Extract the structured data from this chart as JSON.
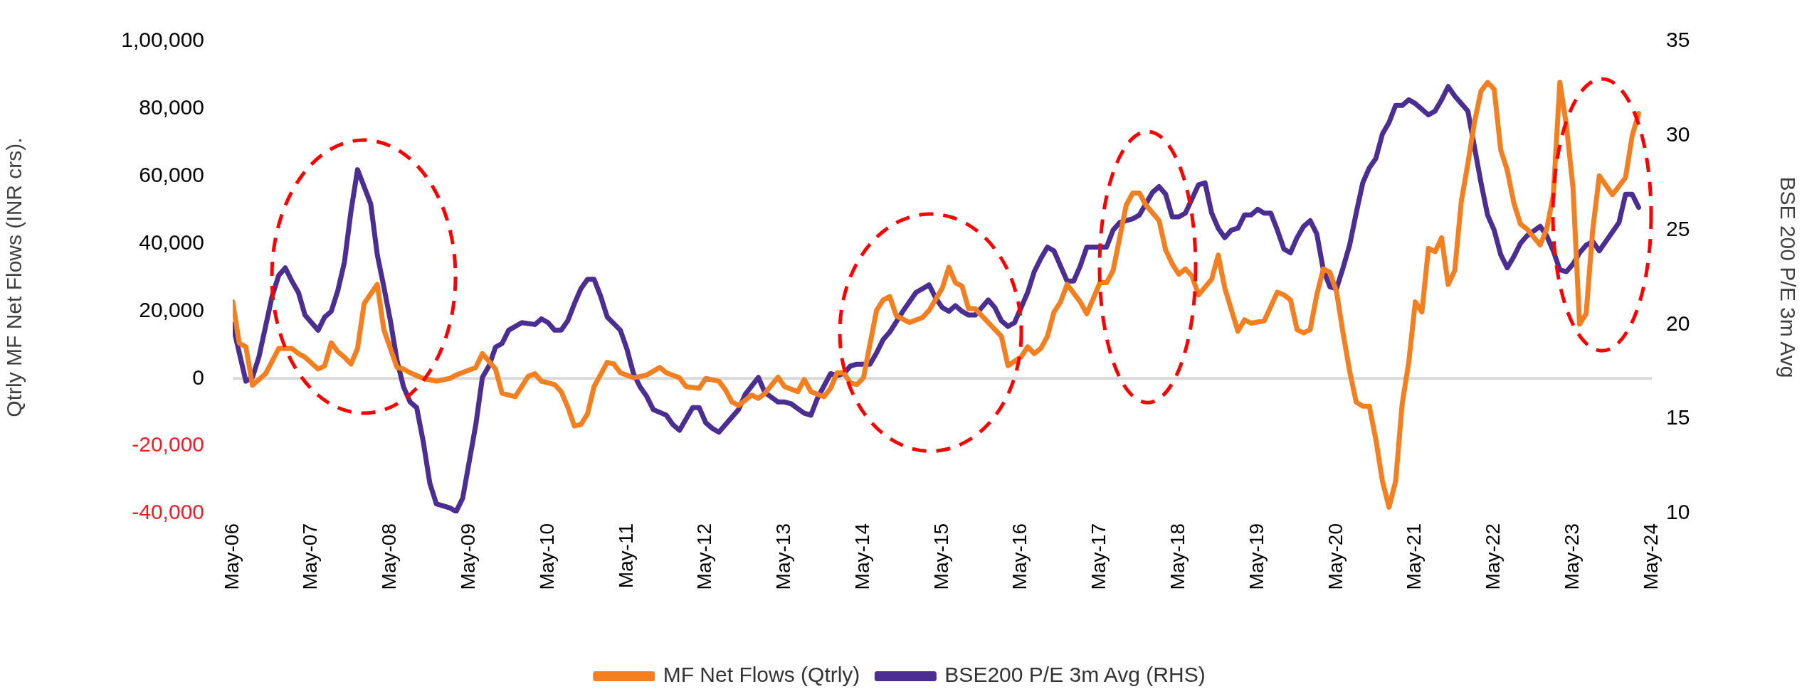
{
  "chart_data": {
    "type": "line",
    "ylabel": "Qtrly MF Net Flows (INR crs).",
    "y2label": "BSE 200 P/E 3m Avg",
    "xlim": [
      "2006-05",
      "2024-05"
    ],
    "xticks": [
      {
        "value": "2006-05",
        "label": "May-06"
      },
      {
        "value": "2007-05",
        "label": "May-07"
      },
      {
        "value": "2008-05",
        "label": "May-08"
      },
      {
        "value": "2009-05",
        "label": "May-09"
      },
      {
        "value": "2010-05",
        "label": "May-10"
      },
      {
        "value": "2011-05",
        "label": "May-11"
      },
      {
        "value": "2012-05",
        "label": "May-12"
      },
      {
        "value": "2013-05",
        "label": "May-13"
      },
      {
        "value": "2014-05",
        "label": "May-14"
      },
      {
        "value": "2015-05",
        "label": "May-15"
      },
      {
        "value": "2016-05",
        "label": "May-16"
      },
      {
        "value": "2017-05",
        "label": "May-17"
      },
      {
        "value": "2018-05",
        "label": "May-18"
      },
      {
        "value": "2019-05",
        "label": "May-19"
      },
      {
        "value": "2020-05",
        "label": "May-20"
      },
      {
        "value": "2021-05",
        "label": "May-21"
      },
      {
        "value": "2022-05",
        "label": "May-22"
      },
      {
        "value": "2023-05",
        "label": "May-23"
      },
      {
        "value": "2024-05",
        "label": "May-24"
      }
    ],
    "ylim": [
      -40000,
      100000
    ],
    "yticks": [
      {
        "value": -40000,
        "label": "-40,000"
      },
      {
        "value": -20000,
        "label": "-20,000"
      },
      0,
      {
        "value": 20000,
        "label": "20,000"
      },
      {
        "value": 40000,
        "label": "40,000"
      },
      {
        "value": 60000,
        "label": "60,000"
      },
      {
        "value": 80000,
        "label": "80,000"
      },
      {
        "value": 100000,
        "label": "1,00,000"
      }
    ],
    "y2lim": [
      10,
      35
    ],
    "y2ticks": [
      10,
      15,
      20,
      25,
      30,
      35
    ],
    "grid": false,
    "legend": "bottom",
    "marker": "none",
    "line_style": "solid",
    "ref_lines": [
      {
        "axis": "y",
        "value": 0,
        "color": "#d9d9d9"
      }
    ],
    "series": [
      {
        "name": "MF Net Flows (Qtrly)",
        "color": "#f47f20",
        "x": [
          "2006-05",
          "2006-06",
          "2006-07",
          "2006-08",
          "2006-10",
          "2006-12",
          "2007-02",
          "2007-03",
          "2007-04",
          "2007-06",
          "2007-07",
          "2007-08",
          "2007-09",
          "2007-10",
          "2007-11",
          "2007-12",
          "2008-01",
          "2008-03",
          "2008-04",
          "2008-06",
          "2008-07",
          "2008-08",
          "2008-10",
          "2008-12",
          "2009-02",
          "2009-03",
          "2009-06",
          "2009-07",
          "2009-09",
          "2009-10",
          "2009-12",
          "2010-02",
          "2010-03",
          "2010-04",
          "2010-06",
          "2010-07",
          "2010-08",
          "2010-09",
          "2010-10",
          "2010-11",
          "2010-12",
          "2011-02",
          "2011-03",
          "2011-04",
          "2011-06",
          "2011-08",
          "2011-10",
          "2011-11",
          "2012-01",
          "2012-02",
          "2012-04",
          "2012-05",
          "2012-07",
          "2012-08",
          "2012-09",
          "2012-10",
          "2012-12",
          "2013-01",
          "2013-02",
          "2013-04",
          "2013-05",
          "2013-07",
          "2013-08",
          "2013-09",
          "2013-11",
          "2013-12",
          "2014-01",
          "2014-02",
          "2014-03",
          "2014-04",
          "2014-05",
          "2014-07",
          "2014-08",
          "2014-09",
          "2014-10",
          "2014-12",
          "2015-02",
          "2015-03",
          "2015-05",
          "2015-06",
          "2015-07",
          "2015-08",
          "2015-09",
          "2015-10",
          "2015-12",
          "2016-02",
          "2016-03",
          "2016-05",
          "2016-06",
          "2016-07",
          "2016-08",
          "2016-09",
          "2016-10",
          "2016-11",
          "2016-12",
          "2017-02",
          "2017-03",
          "2017-05",
          "2017-06",
          "2017-07",
          "2017-09",
          "2017-10",
          "2017-11",
          "2017-12",
          "2018-02",
          "2018-03",
          "2018-04",
          "2018-05",
          "2018-06",
          "2018-07",
          "2018-08",
          "2018-10",
          "2018-11",
          "2018-12",
          "2019-02",
          "2019-03",
          "2019-04",
          "2019-06",
          "2019-08",
          "2019-09",
          "2019-10",
          "2019-11",
          "2019-12",
          "2020-01",
          "2020-02",
          "2020-03",
          "2020-04",
          "2020-05",
          "2020-06",
          "2020-07",
          "2020-08",
          "2020-09",
          "2020-10",
          "2020-11",
          "2020-12",
          "2021-01",
          "2021-02",
          "2021-03",
          "2021-04",
          "2021-05",
          "2021-06",
          "2021-07",
          "2021-08",
          "2021-09",
          "2021-10",
          "2021-11",
          "2021-12",
          "2022-01",
          "2022-02",
          "2022-03",
          "2022-04",
          "2022-05",
          "2022-06",
          "2022-07",
          "2022-08",
          "2022-09",
          "2022-10",
          "2022-12",
          "2023-01",
          "2023-02",
          "2023-03",
          "2023-04",
          "2023-05",
          "2023-06",
          "2023-07",
          "2023-08",
          "2023-09",
          "2023-11",
          "2024-01",
          "2024-02",
          "2024-03"
        ],
        "values": [
          22700,
          10500,
          9400,
          -2000,
          1400,
          8900,
          8900,
          7400,
          6300,
          2800,
          3800,
          10600,
          7900,
          6300,
          4300,
          8900,
          22200,
          27900,
          14500,
          3300,
          2800,
          1700,
          0,
          -800,
          0,
          1000,
          3300,
          7400,
          2800,
          -4400,
          -5400,
          700,
          1400,
          -800,
          -1800,
          -3900,
          -8500,
          -14100,
          -13600,
          -10500,
          -2400,
          4800,
          4300,
          1700,
          200,
          1000,
          3300,
          1700,
          200,
          -2400,
          -2900,
          0,
          -800,
          -3400,
          -7000,
          -8000,
          -4900,
          -5900,
          -4400,
          400,
          -2400,
          -3900,
          -300,
          -3900,
          -5400,
          -2900,
          1700,
          1700,
          -1300,
          -1800,
          200,
          20200,
          23300,
          24300,
          18600,
          16600,
          18100,
          20200,
          26800,
          33000,
          28400,
          27400,
          20700,
          20700,
          16600,
          12500,
          3800,
          6400,
          9400,
          7400,
          8900,
          12500,
          19700,
          22700,
          27900,
          22700,
          19200,
          28400,
          28400,
          32000,
          51400,
          55000,
          55000,
          51400,
          46800,
          38100,
          34000,
          30900,
          32500,
          30400,
          24800,
          29400,
          36600,
          26800,
          14000,
          17400,
          16400,
          17100,
          25600,
          24800,
          23300,
          14500,
          13500,
          14500,
          24800,
          32500,
          31500,
          25800,
          13500,
          2200,
          -7000,
          -8200,
          -8200,
          -18200,
          -30500,
          -38200,
          -30500,
          -7500,
          4800,
          22700,
          19700,
          38600,
          37600,
          41700,
          27900,
          32000,
          52500,
          63700,
          76000,
          85200,
          87800,
          85800,
          67800,
          61700,
          52000,
          45800,
          44300,
          39600,
          44300,
          54300,
          87800,
          75000,
          56600,
          16100,
          19200,
          44000,
          60100,
          54500,
          59600,
          71900,
          78600
        ]
      },
      {
        "name": "BSE200 P/E 3m Avg (RHS)",
        "color": "#4b2e91",
        "axis": "y2",
        "x": [
          "2006-05",
          "2006-07",
          "2006-08",
          "2006-09",
          "2006-11",
          "2006-12",
          "2007-01",
          "2007-02",
          "2007-03",
          "2007-04",
          "2007-06",
          "2007-07",
          "2007-08",
          "2007-09",
          "2007-10",
          "2007-11",
          "2007-12",
          "2008-02",
          "2008-03",
          "2008-04",
          "2008-05",
          "2008-06",
          "2008-07",
          "2008-08",
          "2008-09",
          "2008-10",
          "2008-11",
          "2008-12",
          "2009-02",
          "2009-03",
          "2009-04",
          "2009-06",
          "2009-07",
          "2009-08",
          "2009-09",
          "2009-10",
          "2009-11",
          "2010-01",
          "2010-03",
          "2010-04",
          "2010-05",
          "2010-06",
          "2010-07",
          "2010-08",
          "2010-09",
          "2010-10",
          "2010-11",
          "2010-12",
          "2011-01",
          "2011-02",
          "2011-04",
          "2011-05",
          "2011-06",
          "2011-07",
          "2011-08",
          "2011-09",
          "2011-11",
          "2011-12",
          "2012-01",
          "2012-02",
          "2012-03",
          "2012-04",
          "2012-05",
          "2012-06",
          "2012-07",
          "2012-08",
          "2012-10",
          "2012-11",
          "2013-01",
          "2013-02",
          "2013-04",
          "2013-05",
          "2013-06",
          "2013-08",
          "2013-09",
          "2013-10",
          "2013-12",
          "2014-01",
          "2014-02",
          "2014-03",
          "2014-04",
          "2014-06",
          "2014-07",
          "2014-08",
          "2014-09",
          "2014-11",
          "2014-12",
          "2015-01",
          "2015-02",
          "2015-03",
          "2015-04",
          "2015-05",
          "2015-06",
          "2015-07",
          "2015-08",
          "2015-09",
          "2015-10",
          "2015-11",
          "2015-12",
          "2016-01",
          "2016-02",
          "2016-03",
          "2016-04",
          "2016-05",
          "2016-06",
          "2016-07",
          "2016-08",
          "2016-09",
          "2016-10",
          "2016-11",
          "2016-12",
          "2017-01",
          "2017-02",
          "2017-03",
          "2017-05",
          "2017-06",
          "2017-07",
          "2017-08",
          "2017-10",
          "2017-11",
          "2018-01",
          "2018-02",
          "2018-03",
          "2018-04",
          "2018-05",
          "2018-06",
          "2018-08",
          "2018-09",
          "2018-10",
          "2018-11",
          "2018-12",
          "2019-01",
          "2019-02",
          "2019-03",
          "2019-04",
          "2019-05",
          "2019-06",
          "2019-07",
          "2019-08",
          "2019-09",
          "2019-10",
          "2019-11",
          "2019-12",
          "2020-01",
          "2020-02",
          "2020-03",
          "2020-04",
          "2020-05",
          "2020-06",
          "2020-07",
          "2020-08",
          "2020-09",
          "2020-10",
          "2020-11",
          "2020-12",
          "2021-01",
          "2021-02",
          "2021-03",
          "2021-04",
          "2021-05",
          "2021-06",
          "2021-07",
          "2021-08",
          "2021-09",
          "2021-10",
          "2021-11",
          "2021-12",
          "2022-01",
          "2022-02",
          "2022-03",
          "2022-04",
          "2022-05",
          "2022-06",
          "2022-07",
          "2022-08",
          "2022-09",
          "2022-10",
          "2022-12",
          "2023-01",
          "2023-02",
          "2023-03",
          "2023-04",
          "2023-05",
          "2023-06",
          "2023-07",
          "2023-08",
          "2023-09",
          "2023-10",
          "2023-12",
          "2024-01",
          "2024-02",
          "2024-03"
        ],
        "values": [
          20.0,
          17.0,
          17.2,
          18.3,
          21.5,
          22.6,
          23.0,
          22.3,
          21.7,
          20.5,
          19.7,
          20.4,
          20.7,
          21.8,
          23.3,
          26.0,
          28.2,
          26.4,
          23.7,
          22.0,
          20.2,
          18.1,
          16.7,
          15.9,
          15.6,
          13.8,
          11.6,
          10.5,
          10.3,
          10.1,
          10.8,
          14.7,
          17.2,
          17.8,
          18.8,
          19.0,
          19.7,
          20.1,
          20.0,
          20.3,
          20.1,
          19.7,
          19.7,
          20.2,
          21.1,
          21.9,
          22.4,
          22.4,
          21.5,
          20.4,
          19.7,
          18.7,
          17.4,
          16.7,
          16.2,
          15.5,
          15.2,
          14.7,
          14.4,
          15.0,
          15.6,
          15.6,
          14.8,
          14.5,
          14.3,
          14.7,
          15.5,
          16.3,
          17.2,
          16.4,
          15.9,
          15.9,
          15.8,
          15.3,
          15.2,
          16.1,
          17.4,
          17.3,
          17.4,
          17.8,
          17.9,
          17.9,
          18.5,
          19.2,
          19.6,
          20.7,
          21.2,
          21.7,
          21.9,
          22.1,
          21.4,
          20.9,
          20.7,
          21.0,
          20.7,
          20.5,
          20.5,
          20.9,
          21.3,
          20.9,
          20.2,
          19.9,
          20.1,
          20.9,
          21.7,
          22.8,
          23.5,
          24.1,
          23.9,
          23.1,
          22.3,
          22.3,
          23.1,
          24.1,
          24.1,
          24.1,
          25.0,
          25.4,
          25.6,
          25.8,
          27.0,
          27.3,
          26.9,
          25.7,
          25.7,
          25.9,
          27.4,
          27.5,
          25.9,
          25.1,
          24.6,
          25.0,
          25.1,
          25.8,
          25.8,
          26.1,
          25.9,
          25.9,
          25.0,
          24.0,
          23.8,
          24.6,
          25.2,
          25.5,
          24.8,
          22.9,
          22.0,
          21.9,
          23.0,
          24.2,
          25.9,
          27.5,
          28.3,
          28.8,
          30.1,
          30.7,
          31.6,
          31.6,
          31.9,
          31.7,
          31.4,
          31.1,
          31.3,
          31.9,
          32.6,
          32.1,
          31.7,
          31.3,
          29.4,
          27.5,
          25.8,
          25.0,
          23.7,
          23.0,
          23.6,
          24.3,
          24.7,
          25.2,
          24.7,
          23.9,
          22.9,
          22.8,
          23.2,
          23.8,
          24.2,
          24.4,
          23.9,
          24.4,
          25.4,
          26.9,
          26.9,
          26.2
        ]
      }
    ]
  }
}
